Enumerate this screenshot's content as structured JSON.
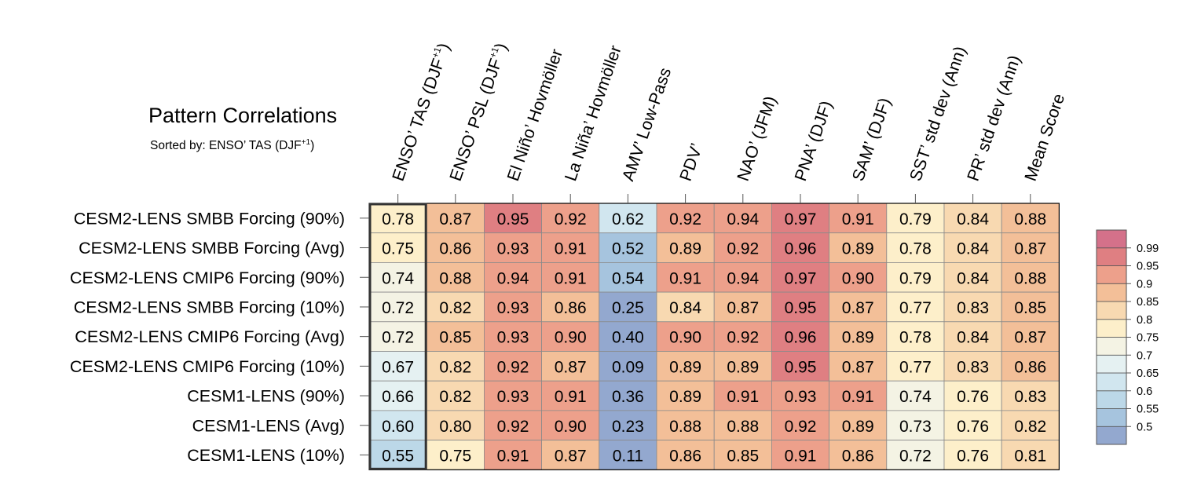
{
  "chart_data": {
    "type": "heatmap",
    "title": "Pattern Correlations",
    "subtitle_prefix": "Sorted by: ENSO’ TAS (DJF",
    "subtitle_sup": "+1",
    "subtitle_suffix": ")",
    "columns": [
      {
        "label": "ENSO’ TAS (DJF",
        "sup": "+1",
        "suffix": ")"
      },
      {
        "label": "ENSO’ PSL (DJF",
        "sup": "+1",
        "suffix": ")"
      },
      {
        "label": "El Niño’ Hovmöller",
        "sup": "",
        "suffix": ""
      },
      {
        "label": "La Niña’ Hovmöller",
        "sup": "",
        "suffix": ""
      },
      {
        "label": "AMV’ Low-Pass",
        "sup": "",
        "suffix": ""
      },
      {
        "label": "PDV’",
        "sup": "",
        "suffix": ""
      },
      {
        "label": "NAO’ (JFM)",
        "sup": "",
        "suffix": ""
      },
      {
        "label": "PNA’ (DJF)",
        "sup": "",
        "suffix": ""
      },
      {
        "label": "SAM’ (DJF)",
        "sup": "",
        "suffix": ""
      },
      {
        "label": "SST’ std dev (Ann)",
        "sup": "",
        "suffix": ""
      },
      {
        "label": "PR’ std dev (Ann)",
        "sup": "",
        "suffix": ""
      },
      {
        "label": "Mean Score",
        "sup": "",
        "suffix": ""
      }
    ],
    "rows": [
      "CESM2-LENS SMBB Forcing (90%)",
      "CESM2-LENS SMBB Forcing (Avg)",
      "CESM2-LENS CMIP6 Forcing (90%)",
      "CESM2-LENS SMBB Forcing (10%)",
      "CESM2-LENS CMIP6 Forcing (Avg)",
      "CESM2-LENS CMIP6 Forcing (10%)",
      "CESM1-LENS (90%)",
      "CESM1-LENS (Avg)",
      "CESM1-LENS (10%)"
    ],
    "values": [
      [
        "0.78",
        "0.87",
        "0.95",
        "0.92",
        "0.62",
        "0.92",
        "0.94",
        "0.97",
        "0.91",
        "0.79",
        "0.84",
        "0.88"
      ],
      [
        "0.75",
        "0.86",
        "0.93",
        "0.91",
        "0.52",
        "0.89",
        "0.92",
        "0.96",
        "0.89",
        "0.78",
        "0.84",
        "0.87"
      ],
      [
        "0.74",
        "0.88",
        "0.94",
        "0.91",
        "0.54",
        "0.91",
        "0.94",
        "0.97",
        "0.90",
        "0.79",
        "0.84",
        "0.88"
      ],
      [
        "0.72",
        "0.82",
        "0.93",
        "0.86",
        "0.25",
        "0.84",
        "0.87",
        "0.95",
        "0.87",
        "0.77",
        "0.83",
        "0.85"
      ],
      [
        "0.72",
        "0.85",
        "0.93",
        "0.90",
        "0.40",
        "0.90",
        "0.92",
        "0.96",
        "0.89",
        "0.78",
        "0.84",
        "0.87"
      ],
      [
        "0.67",
        "0.82",
        "0.92",
        "0.87",
        "0.09",
        "0.89",
        "0.89",
        "0.95",
        "0.87",
        "0.77",
        "0.83",
        "0.86"
      ],
      [
        "0.66",
        "0.82",
        "0.93",
        "0.91",
        "0.36",
        "0.89",
        "0.91",
        "0.93",
        "0.91",
        "0.74",
        "0.76",
        "0.83"
      ],
      [
        "0.60",
        "0.80",
        "0.92",
        "0.90",
        "0.23",
        "0.88",
        "0.88",
        "0.92",
        "0.89",
        "0.73",
        "0.76",
        "0.82"
      ],
      [
        "0.55",
        "0.75",
        "0.91",
        "0.87",
        "0.11",
        "0.86",
        "0.85",
        "0.91",
        "0.86",
        "0.72",
        "0.76",
        "0.81"
      ]
    ],
    "highlighted_column": 0,
    "colorbar": {
      "thresholds": [
        0.5,
        0.55,
        0.6,
        0.65,
        0.7,
        0.75,
        0.8,
        0.85,
        0.9,
        0.95,
        0.99
      ],
      "labels": [
        "0.5",
        "0.55",
        "0.6",
        "0.65",
        "0.7",
        "0.75",
        "0.8",
        "0.85",
        "0.9",
        "0.95",
        "0.99"
      ],
      "colors": [
        "#93a8cf",
        "#a6c4de",
        "#bcd8e8",
        "#d1e6ef",
        "#e5f1f2",
        "#f4f3e4",
        "#fdefca",
        "#f8d9b1",
        "#f3bf98",
        "#eda08b",
        "#df7f82",
        "#d4718a"
      ]
    }
  }
}
